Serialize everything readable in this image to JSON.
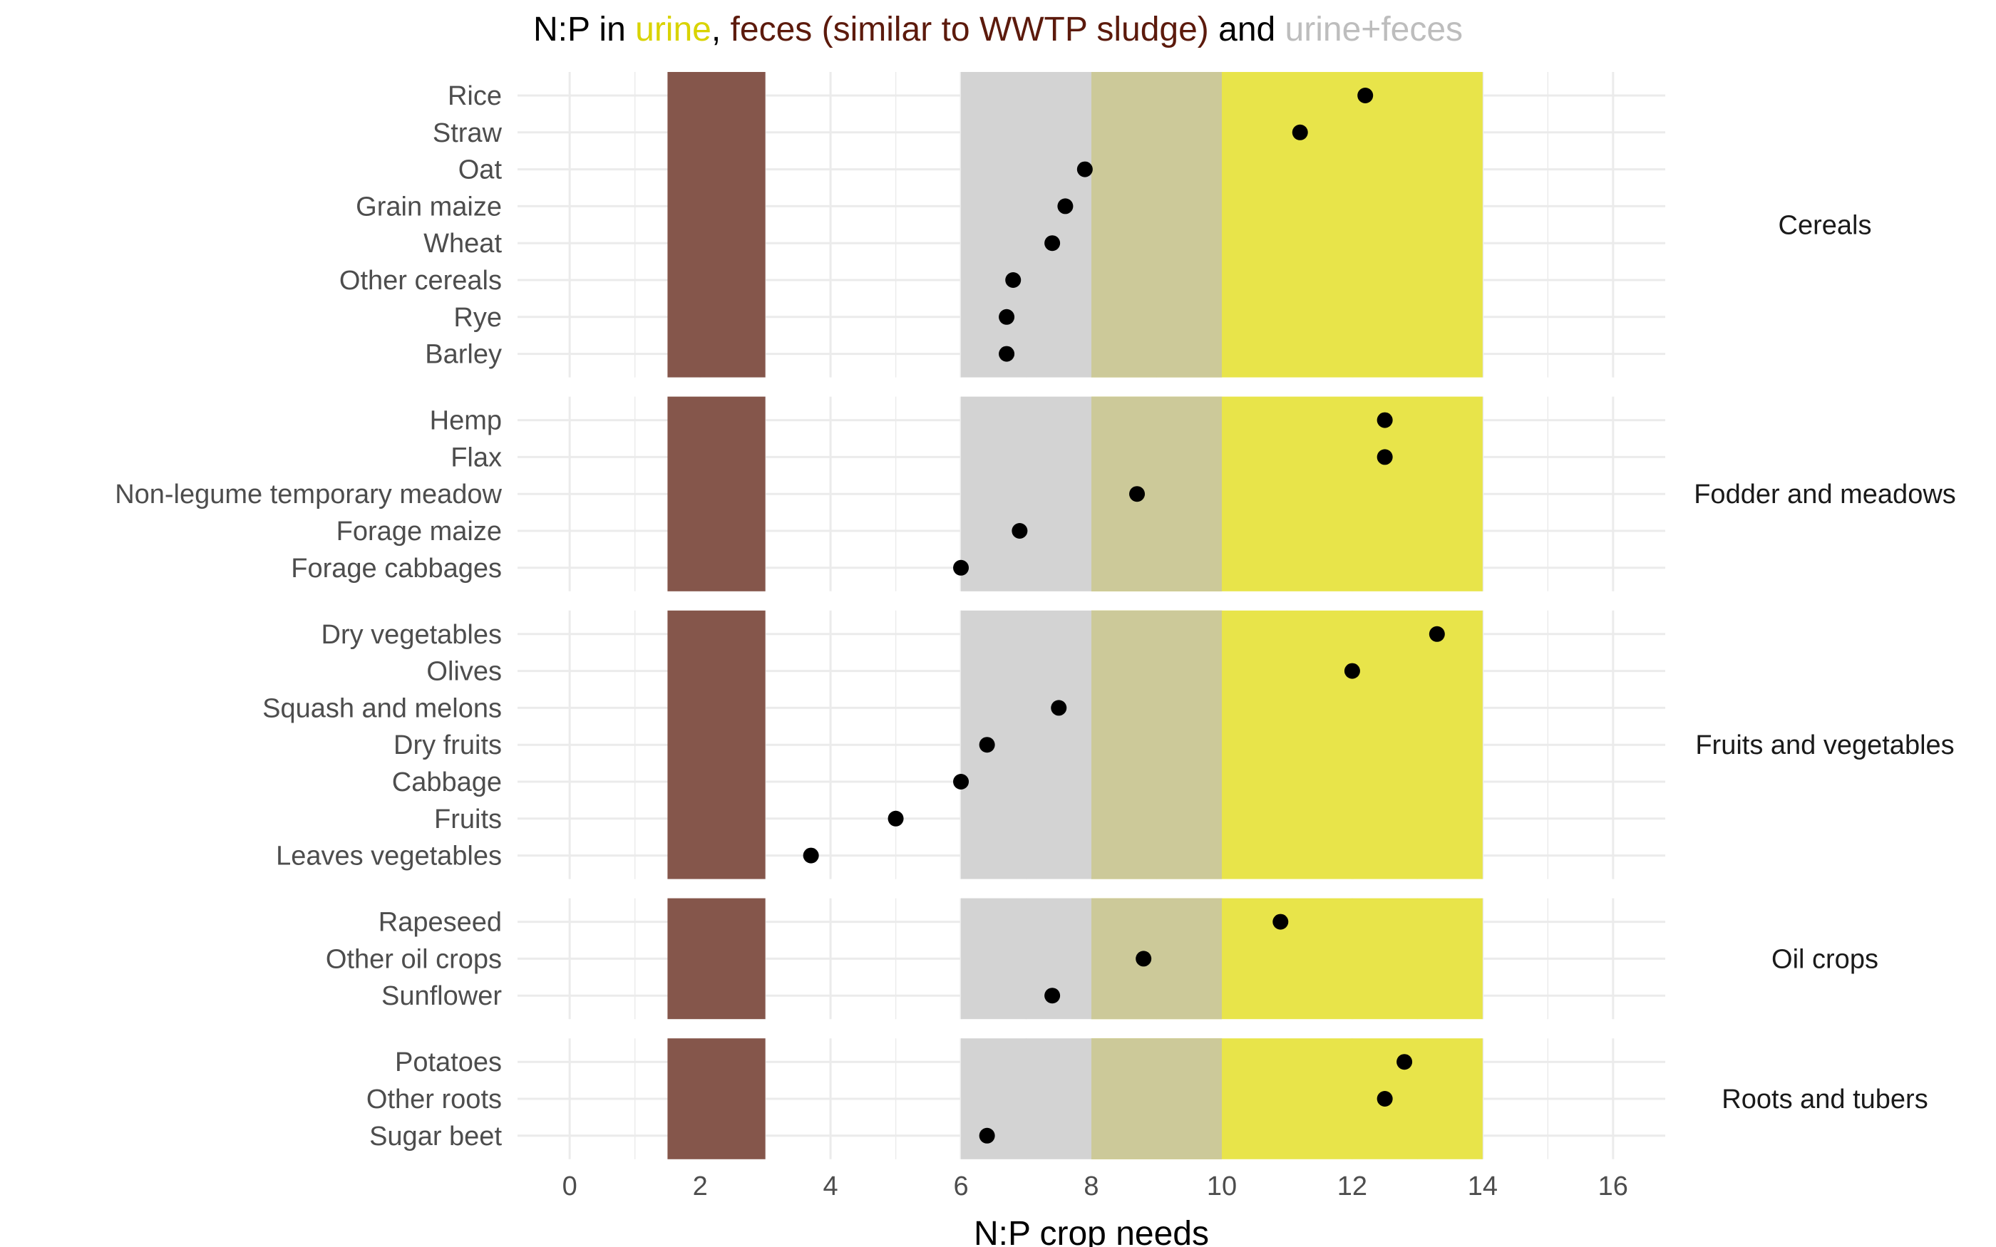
{
  "title": {
    "prefix": "N:P in ",
    "urine": "urine",
    "sep": ", ",
    "feces": "feces (similar to WWTP sludge)",
    "and": " and ",
    "mix": "urine+feces"
  },
  "colors": {
    "urine": "#d9d300",
    "feces": "#5c1a0c",
    "mix": "#bdbdbd",
    "urine_band": "#e8e44a",
    "feces_band": "#85564b",
    "mix_band": "#d3d3d3",
    "overlap_band": "#ccc999",
    "point": "#000000",
    "grid": "#ebebeb"
  },
  "chart_data": {
    "type": "scatter",
    "xlabel": "N:P crop needs",
    "xlim": [
      -0.8,
      16.8
    ],
    "xticks": [
      0,
      2,
      4,
      6,
      8,
      10,
      12,
      14,
      16
    ],
    "bands": [
      {
        "name": "feces",
        "xmin": 1.5,
        "xmax": 3
      },
      {
        "name": "urine+feces",
        "xmin": 6,
        "xmax": 10
      },
      {
        "name": "urine",
        "xmin": 8,
        "xmax": 14
      }
    ],
    "groups": [
      {
        "name": "Cereals",
        "items": [
          {
            "label": "Rice",
            "value": 12.2
          },
          {
            "label": "Straw",
            "value": 11.2
          },
          {
            "label": "Oat",
            "value": 7.9
          },
          {
            "label": "Grain maize",
            "value": 7.6
          },
          {
            "label": "Wheat",
            "value": 7.4
          },
          {
            "label": "Other cereals",
            "value": 6.8
          },
          {
            "label": "Rye",
            "value": 6.7
          },
          {
            "label": "Barley",
            "value": 6.7
          }
        ]
      },
      {
        "name": "Fodder and meadows",
        "items": [
          {
            "label": "Hemp",
            "value": 12.5
          },
          {
            "label": "Flax",
            "value": 12.5
          },
          {
            "label": "Non-legume temporary meadow",
            "value": 8.7
          },
          {
            "label": "Forage maize",
            "value": 6.9
          },
          {
            "label": "Forage cabbages",
            "value": 6.0
          }
        ]
      },
      {
        "name": "Fruits and vegetables",
        "items": [
          {
            "label": "Dry vegetables",
            "value": 13.3
          },
          {
            "label": "Olives",
            "value": 12.0
          },
          {
            "label": "Squash and melons",
            "value": 7.5
          },
          {
            "label": "Dry fruits",
            "value": 6.4
          },
          {
            "label": "Cabbage",
            "value": 6.0
          },
          {
            "label": "Fruits",
            "value": 5.0
          },
          {
            "label": "Leaves vegetables",
            "value": 3.7
          }
        ]
      },
      {
        "name": "Oil crops",
        "items": [
          {
            "label": "Rapeseed",
            "value": 10.9
          },
          {
            "label": "Other oil crops",
            "value": 8.8
          },
          {
            "label": "Sunflower",
            "value": 7.4
          }
        ]
      },
      {
        "name": "Roots and tubers",
        "items": [
          {
            "label": "Potatoes",
            "value": 12.8
          },
          {
            "label": "Other roots",
            "value": 12.5
          },
          {
            "label": "Sugar beet",
            "value": 6.4
          }
        ]
      }
    ]
  }
}
